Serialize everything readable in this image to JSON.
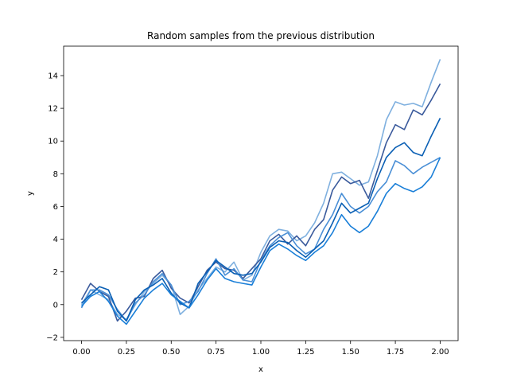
{
  "chart_data": {
    "type": "line",
    "title": "Random samples from the previous distribution",
    "xlabel": "x",
    "ylabel": "y",
    "xlim": [
      -0.1,
      2.1
    ],
    "ylim": [
      -2.2,
      15.8
    ],
    "grid": false,
    "legend": "none",
    "xticks": [
      "0.00",
      "0.25",
      "0.50",
      "0.75",
      "1.00",
      "1.25",
      "1.50",
      "1.75",
      "2.00"
    ],
    "xtick_values": [
      0,
      0.25,
      0.5,
      0.75,
      1.0,
      1.25,
      1.5,
      1.75,
      2.0
    ],
    "yticks": [
      "−2",
      "0",
      "2",
      "4",
      "6",
      "8",
      "10",
      "12",
      "14"
    ],
    "ytick_values": [
      -2,
      0,
      2,
      4,
      6,
      8,
      10,
      12,
      14
    ],
    "x": [
      0.0,
      0.05,
      0.1,
      0.15,
      0.2,
      0.25,
      0.3,
      0.35,
      0.4,
      0.45,
      0.5,
      0.55,
      0.6,
      0.65,
      0.7,
      0.75,
      0.8,
      0.85,
      0.9,
      0.95,
      1.0,
      1.05,
      1.1,
      1.15,
      1.2,
      1.25,
      1.3,
      1.35,
      1.4,
      1.45,
      1.5,
      1.55,
      1.6,
      1.65,
      1.7,
      1.75,
      1.8,
      1.85,
      1.9,
      1.95,
      2.0
    ],
    "series": [
      {
        "color": "#7fb0df",
        "values": [
          0.0,
          0.9,
          0.6,
          0.3,
          -0.6,
          -0.9,
          0.0,
          0.8,
          1.3,
          1.8,
          1.2,
          -0.6,
          -0.1,
          0.9,
          1.6,
          2.3,
          2.0,
          2.6,
          1.5,
          1.8,
          3.2,
          4.2,
          4.6,
          4.5,
          3.9,
          4.2,
          5.0,
          6.2,
          8.0,
          8.1,
          7.7,
          7.3,
          7.5,
          9.1,
          11.3,
          12.4,
          12.2,
          12.3,
          12.1,
          13.6,
          15.0
        ]
      },
      {
        "color": "#3a5a9c",
        "values": [
          0.3,
          1.3,
          0.8,
          0.5,
          -1.0,
          -0.4,
          0.4,
          0.5,
          1.6,
          2.1,
          1.0,
          0.4,
          0.1,
          1.1,
          2.1,
          2.6,
          2.2,
          2.1,
          1.6,
          2.2,
          2.8,
          3.9,
          4.3,
          3.7,
          4.2,
          3.6,
          4.6,
          5.2,
          7.0,
          7.8,
          7.4,
          7.6,
          6.5,
          8.2,
          9.9,
          11.0,
          10.7,
          11.9,
          11.6,
          12.5,
          13.5
        ]
      },
      {
        "color": "#4a8fd6",
        "values": [
          -0.2,
          0.9,
          0.9,
          0.6,
          -0.3,
          -1.0,
          0.1,
          0.6,
          1.4,
          1.9,
          1.2,
          0.0,
          0.2,
          0.8,
          1.9,
          2.8,
          1.8,
          2.2,
          1.5,
          1.4,
          2.7,
          3.6,
          4.1,
          4.4,
          3.6,
          3.1,
          3.4,
          4.6,
          5.5,
          6.8,
          6.0,
          5.6,
          6.0,
          6.9,
          7.5,
          8.8,
          8.5,
          8.0,
          8.4,
          8.7,
          9.0
        ]
      },
      {
        "color": "#0a5fb4",
        "values": [
          0.1,
          0.6,
          1.1,
          0.9,
          -0.4,
          -1.0,
          0.3,
          0.9,
          1.2,
          1.6,
          0.7,
          0.1,
          -0.2,
          1.3,
          2.0,
          2.7,
          2.3,
          1.9,
          1.8,
          1.9,
          2.6,
          3.5,
          3.9,
          3.8,
          3.3,
          2.9,
          3.4,
          3.9,
          5.0,
          6.2,
          5.6,
          5.9,
          6.2,
          7.7,
          9.0,
          9.6,
          9.9,
          9.3,
          9.1,
          10.3,
          11.4
        ]
      },
      {
        "color": "#1a7fd8",
        "values": [
          -0.1,
          0.5,
          0.8,
          0.2,
          -0.7,
          -1.2,
          -0.4,
          0.4,
          0.9,
          1.3,
          0.6,
          0.2,
          -0.2,
          0.6,
          1.5,
          2.2,
          1.6,
          1.4,
          1.3,
          1.2,
          2.3,
          3.3,
          3.7,
          3.4,
          3.0,
          2.7,
          3.2,
          3.6,
          4.4,
          5.5,
          4.8,
          4.4,
          4.8,
          5.7,
          6.8,
          7.4,
          7.1,
          6.9,
          7.2,
          7.8,
          9.0
        ]
      }
    ]
  }
}
